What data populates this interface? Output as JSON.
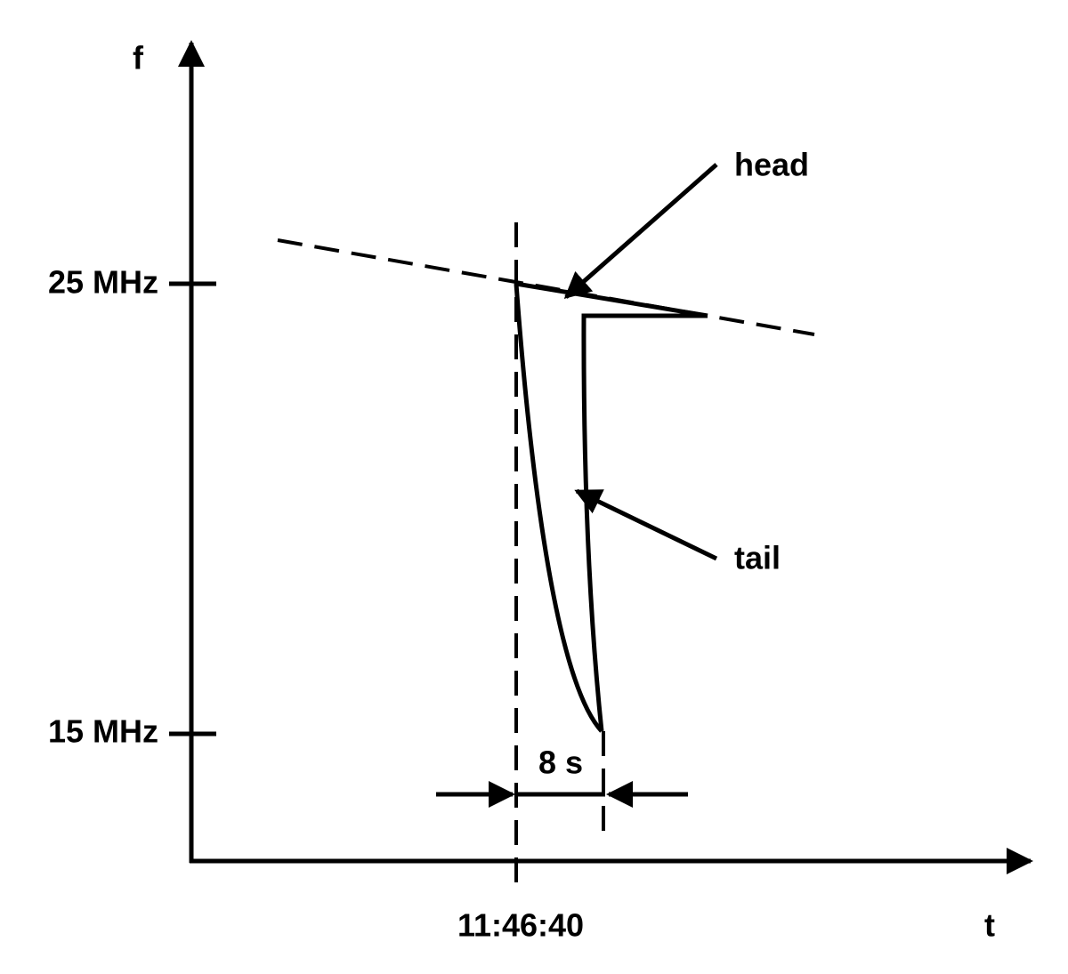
{
  "axes": {
    "y_label": "f",
    "x_label": "t"
  },
  "ticks": {
    "upper": "25 MHz",
    "lower": "15 MHz",
    "time": "11:46:40"
  },
  "annotations": {
    "head": "head",
    "tail": "tail",
    "duration": "8 s"
  }
}
